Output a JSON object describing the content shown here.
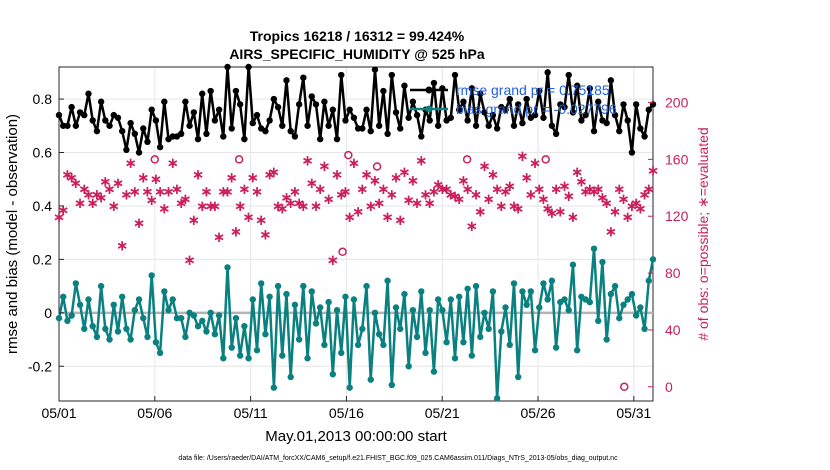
{
  "chart_data": {
    "type": "line",
    "title_line1": "Tropics 16218 / 16312 = 99.424%",
    "title_line2": "AIRS_SPECIFIC_HUMIDITY @ 525 hPa",
    "xlabel": "May.01,2013 00:00:00 start",
    "ylabel": "rmse and bias (model - observation)",
    "ylabel_right": "# of obs: o=possible; ∗=evaluated",
    "footnote": "data file: /Users/raeder/DAI/ATM_forcXX/CAM6_setup/f.e21.FHIST_BGC.f09_025.CAM6assim.011/Diags_NTrS_2013-05/obs_diag_output.nc",
    "x_ticks": [
      {
        "label": "05/01",
        "day": 0
      },
      {
        "label": "05/06",
        "day": 5
      },
      {
        "label": "05/11",
        "day": 10
      },
      {
        "label": "05/16",
        "day": 15
      },
      {
        "label": "05/21",
        "day": 20
      },
      {
        "label": "05/26",
        "day": 25
      },
      {
        "label": "05/31",
        "day": 30
      }
    ],
    "xlim": [
      0,
      31.0
    ],
    "ylim": [
      -0.33,
      0.92
    ],
    "y_ticks": [
      "-0.2",
      "0",
      "0.2",
      "0.4",
      "0.6",
      "0.8"
    ],
    "y_tick_values": [
      -0.2,
      0,
      0.2,
      0.4,
      0.6,
      0.8
    ],
    "y2lim": [
      -10,
      225
    ],
    "y2_ticks": [
      "0",
      "40",
      "80",
      "120",
      "160",
      "200"
    ],
    "y2_tick_values": [
      0,
      40,
      80,
      120,
      160,
      200
    ],
    "legend": [
      {
        "label": "rmse grand pr = 0.75185",
        "color": "#000000"
      },
      {
        "label": "bias grand pr = -0.027796",
        "color": "#0a8080"
      }
    ],
    "colors": {
      "rmse": "#000000",
      "bias": "#0a8080",
      "obs": "#cc1f5a",
      "zero_line": "#b3b3b3",
      "grid": "#e6e6e6"
    },
    "series": [
      {
        "name": "rmse",
        "values": [
          0.74,
          0.7,
          0.7,
          0.77,
          0.7,
          0.75,
          0.74,
          0.82,
          0.72,
          0.68,
          0.79,
          0.72,
          0.7,
          0.74,
          0.73,
          0.68,
          0.61,
          0.71,
          0.67,
          0.6,
          0.69,
          0.64,
          0.76,
          0.72,
          0.62,
          0.79,
          0.65,
          0.66,
          0.66,
          0.67,
          0.79,
          0.7,
          0.75,
          0.65,
          0.82,
          0.67,
          0.83,
          0.72,
          0.76,
          0.66,
          0.92,
          0.69,
          0.83,
          0.78,
          0.65,
          0.92,
          0.71,
          0.74,
          0.69,
          0.68,
          0.72,
          0.8,
          0.77,
          0.7,
          0.87,
          0.68,
          0.66,
          0.78,
          0.88,
          0.7,
          0.81,
          0.78,
          0.65,
          0.79,
          0.7,
          0.76,
          0.65,
          0.89,
          0.72,
          0.76,
          0.73,
          0.69,
          0.69,
          0.76,
          0.68,
          0.91,
          0.7,
          0.83,
          0.67,
          0.89,
          0.75,
          0.69,
          0.85,
          0.73,
          0.79,
          0.74,
          0.66,
          0.76,
          0.72,
          0.86,
          0.7,
          0.84,
          0.72,
          0.73,
          0.89,
          0.76,
          0.79,
          0.72,
          0.84,
          0.7,
          0.82,
          0.75,
          0.7,
          0.74,
          0.69,
          0.77,
          0.76,
          0.8,
          0.7,
          0.78,
          0.71,
          0.8,
          0.73,
          0.74,
          0.83,
          0.73,
          0.9,
          0.7,
          0.67,
          0.78,
          0.77,
          0.89,
          0.75,
          0.85,
          0.72,
          0.74,
          0.84,
          0.68,
          0.79,
          0.72,
          0.71,
          0.87,
          0.74,
          0.68,
          0.78,
          0.72,
          0.6,
          0.78,
          0.69,
          0.66,
          0.76,
          0.78
        ]
      },
      {
        "name": "bias",
        "values": [
          -0.02,
          0.06,
          -0.03,
          -0.01,
          0.11,
          0.03,
          -0.06,
          0.05,
          -0.05,
          -0.09,
          0.1,
          -0.06,
          -0.1,
          0.03,
          -0.07,
          0.06,
          -0.06,
          -0.1,
          0.01,
          0.05,
          -0.02,
          -0.09,
          0.14,
          -0.11,
          -0.15,
          0.08,
          0.01,
          0.05,
          -0.02,
          -0.02,
          -0.09,
          0.0,
          -0.01,
          -0.05,
          -0.03,
          -0.07,
          0.0,
          -0.08,
          -0.01,
          -0.17,
          0.17,
          -0.13,
          -0.02,
          -0.16,
          -0.05,
          -0.17,
          0.05,
          -0.14,
          0.11,
          -0.08,
          0.06,
          -0.28,
          0.1,
          -0.16,
          0.07,
          -0.24,
          0.03,
          -0.1,
          0.1,
          -0.17,
          0.08,
          -0.04,
          0.02,
          -0.12,
          0.04,
          -0.23,
          0.01,
          -0.15,
          0.06,
          -0.28,
          0.05,
          -0.12,
          -0.06,
          0.1,
          -0.25,
          0.0,
          -0.08,
          -0.12,
          0.12,
          -0.27,
          0.02,
          -0.06,
          0.07,
          -0.2,
          0.01,
          -0.09,
          0.08,
          -0.15,
          0.01,
          -0.22,
          0.05,
          0.01,
          -0.11,
          0.05,
          -0.17,
          0.06,
          -0.11,
          0.09,
          -0.16,
          0.1,
          -0.09,
          0.0,
          -0.06,
          0.08,
          -0.32,
          -0.07,
          0.02,
          -0.12,
          0.11,
          -0.24,
          0.08,
          0.03,
          0.08,
          -0.14,
          0.02,
          0.11,
          0.05,
          0.12,
          -0.13,
          0.04,
          0.05,
          0.01,
          0.18,
          -0.14,
          0.06,
          0.05,
          0.04,
          0.24,
          -0.03,
          0.19,
          -0.1,
          0.07,
          0.1,
          -0.02,
          0.03,
          0.05,
          0.07,
          -0.01,
          0.02,
          -0.06,
          0.12,
          0.2
        ]
      },
      {
        "name": "obs_evaluated",
        "values": [
          120,
          125,
          150,
          148,
          144,
          130,
          140,
          136,
          130,
          136,
          134,
          145,
          140,
          128,
          144,
          100,
          136,
          158,
          138,
          116,
          148,
          138,
          132,
          147,
          138,
          126,
          138,
          158,
          140,
          130,
          133,
          90,
          118,
          150,
          128,
          138,
          128,
          128,
          106,
          138,
          138,
          148,
          110,
          128,
          140,
          120,
          148,
          138,
          118,
          108,
          150,
          152,
          128,
          126,
          134,
          130,
          138,
          130,
          128,
          160,
          144,
          128,
          140,
          156,
          133,
          90,
          150,
          136,
          138,
          120,
          158,
          124,
          140,
          150,
          128,
          146,
          130,
          140,
          120,
          136,
          148,
          118,
          152,
          132,
          146,
          130,
          160,
          136,
          130,
          138,
          143,
          140,
          140,
          136,
          135,
          133,
          146,
          140,
          114,
          136,
          124,
          156,
          133,
          150,
          140,
          128,
          138,
          142,
          128,
          126,
          163,
          148,
          136,
          158,
          140,
          133,
          126,
          123,
          140,
          124,
          142,
          135,
          120,
          152,
          145,
          138,
          140,
          138,
          140,
          134,
          130,
          110,
          124,
          140,
          133,
          120,
          128,
          130,
          126,
          136,
          140,
          153
        ]
      },
      {
        "name": "obs_possible_highlights",
        "points": [
          [
            5.0,
            160
          ],
          [
            9.4,
            160
          ],
          [
            15.1,
            163
          ],
          [
            14.8,
            95
          ],
          [
            16.6,
            155
          ],
          [
            21.3,
            160
          ],
          [
            25.4,
            160
          ],
          [
            29.5,
            0
          ]
        ]
      }
    ]
  }
}
